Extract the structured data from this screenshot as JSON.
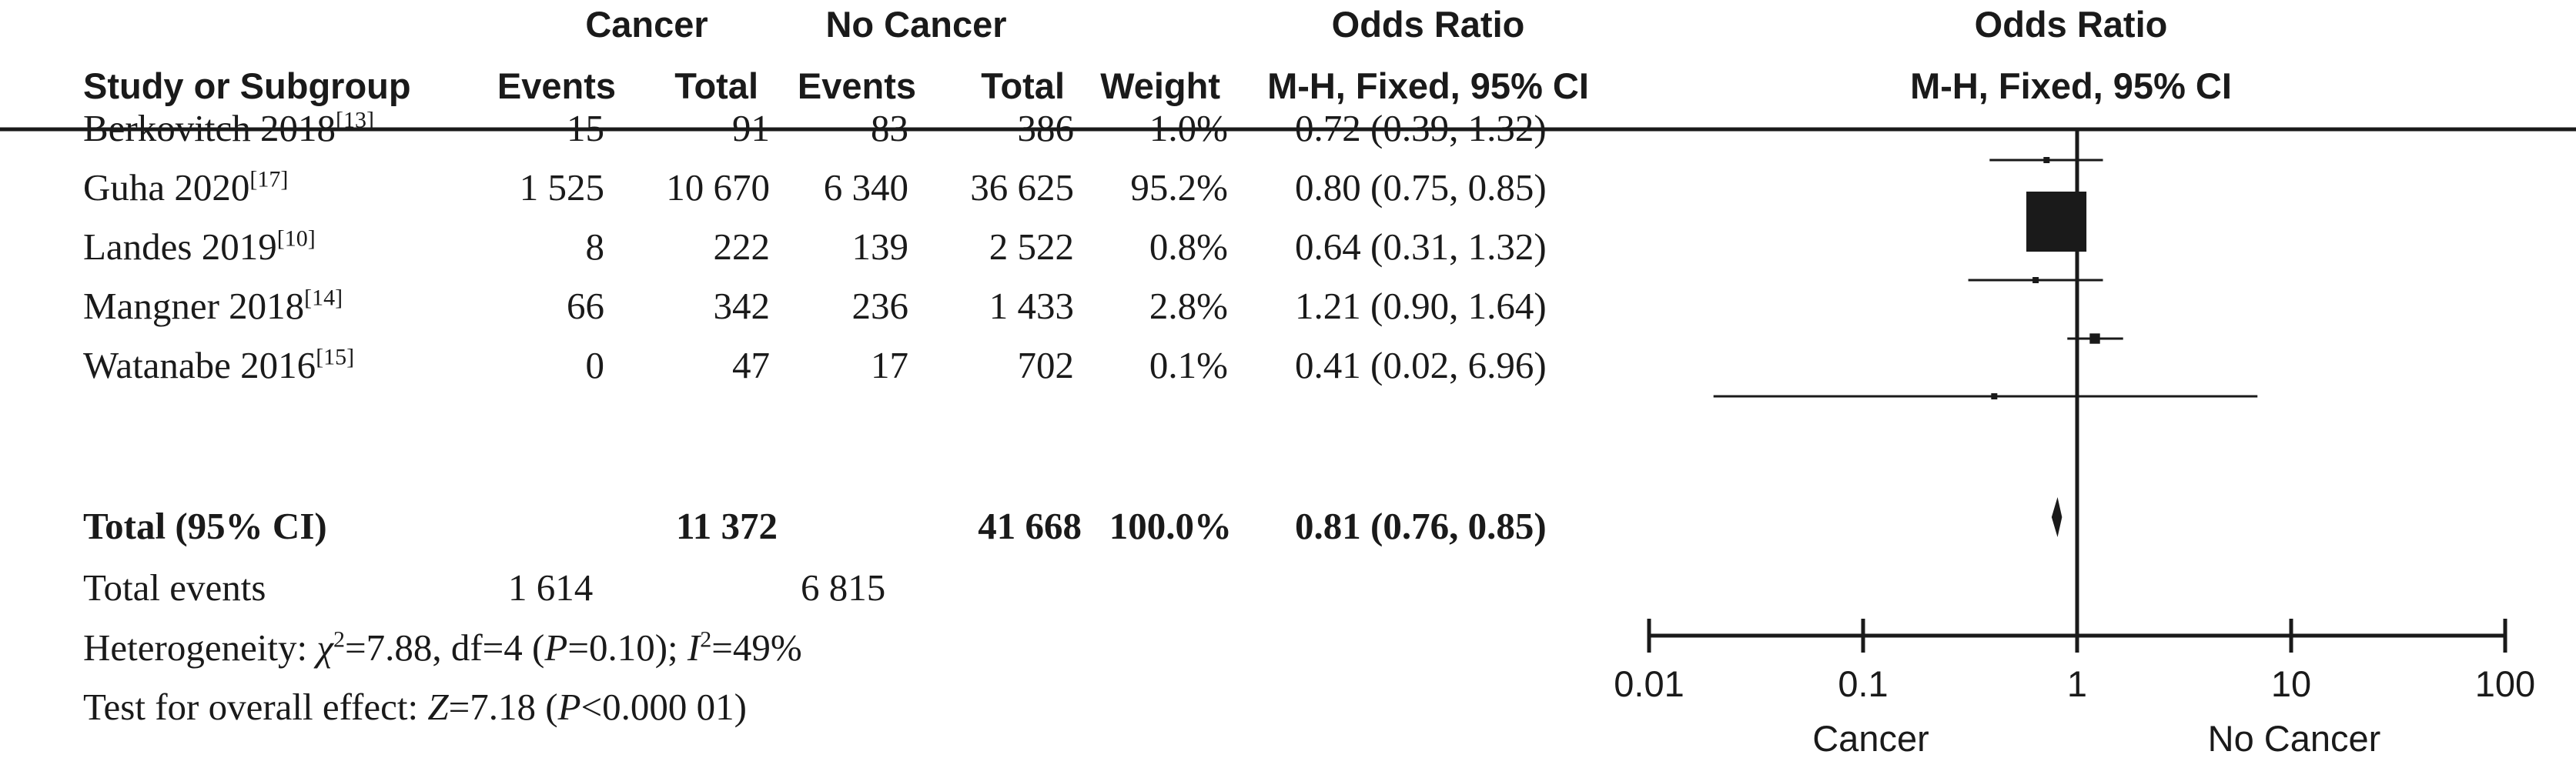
{
  "headers": {
    "group1": "Cancer",
    "group2": "No Cancer",
    "or_top": "Odds Ratio",
    "or_sub": "M-H, Fixed, 95% CI",
    "study": "Study or Subgroup",
    "events1": "Events",
    "total1": "Total",
    "events2": "Events",
    "total2": "Total",
    "weight": "Weight",
    "plot_top": "Odds Ratio",
    "plot_sub": "M-H, Fixed, 95% CI"
  },
  "studies": [
    {
      "name": "Berkovitch 2018",
      "ref": "[13]",
      "e1": "15",
      "t1": "91",
      "e2": "83",
      "t2": "386",
      "weight": "1.0%",
      "ci_text": "0.72 (0.39, 1.32)"
    },
    {
      "name": "Guha 2020",
      "ref": "[17]",
      "e1": "1 525",
      "t1": "10 670",
      "e2": "6 340",
      "t2": "36 625",
      "weight": "95.2%",
      "ci_text": "0.80 (0.75, 0.85)"
    },
    {
      "name": "Landes 2019",
      "ref": "[10]",
      "e1": "8",
      "t1": "222",
      "e2": "139",
      "t2": "2 522",
      "weight": "0.8%",
      "ci_text": "0.64 (0.31, 1.32)"
    },
    {
      "name": "Mangner 2018",
      "ref": "[14]",
      "e1": "66",
      "t1": "342",
      "e2": "236",
      "t2": "1 433",
      "weight": "2.8%",
      "ci_text": "1.21 (0.90, 1.64)"
    },
    {
      "name": "Watanabe 2016",
      "ref": "[15]",
      "e1": "0",
      "t1": "47",
      "e2": "17",
      "t2": "702",
      "weight": "0.1%",
      "ci_text": "0.41 (0.02, 6.96)"
    }
  ],
  "total": {
    "label": "Total (95% CI)",
    "t1": "11 372",
    "t2": "41 668",
    "weight": "100.0%",
    "ci_text": "0.81 (0.76, 0.85)"
  },
  "total_events": {
    "label": "Total events",
    "e1": "1 614",
    "e2": "6 815"
  },
  "heterogeneity": {
    "prefix": "Heterogeneity: ",
    "chi_sym": "χ",
    "chi_sup": "2",
    "chi_val": "=7.88, df=4 (",
    "p_sym": "P",
    "p_val": "=0.10); ",
    "i_sym": "I",
    "i_sup": "2",
    "i_val": "=49%"
  },
  "overall": {
    "prefix": "Test for overall effect: ",
    "z_sym": "Z",
    "z_val": "=7.18 (",
    "p_sym": "P",
    "p_val": "<0.000 01)"
  },
  "chart_data": {
    "type": "forest",
    "scale": "log",
    "xlim": [
      0.01,
      100
    ],
    "ticks": [
      0.01,
      0.1,
      1,
      10,
      100
    ],
    "tick_labels": [
      "0.01",
      "0.1",
      "1",
      "10",
      "100"
    ],
    "reference_line": 1,
    "left_label": "Cancer",
    "right_label": "No Cancer",
    "studies": [
      {
        "or": 0.72,
        "lo": 0.39,
        "hi": 1.32,
        "weight": 1.0
      },
      {
        "or": 0.8,
        "lo": 0.75,
        "hi": 0.85,
        "weight": 95.2
      },
      {
        "or": 0.64,
        "lo": 0.31,
        "hi": 1.32,
        "weight": 0.8
      },
      {
        "or": 1.21,
        "lo": 0.9,
        "hi": 1.64,
        "weight": 2.8
      },
      {
        "or": 0.41,
        "lo": 0.02,
        "hi": 6.96,
        "weight": 0.1
      }
    ],
    "total": {
      "or": 0.81,
      "lo": 0.76,
      "hi": 0.85
    },
    "colors": {
      "ink": "#1a1a1a"
    }
  }
}
